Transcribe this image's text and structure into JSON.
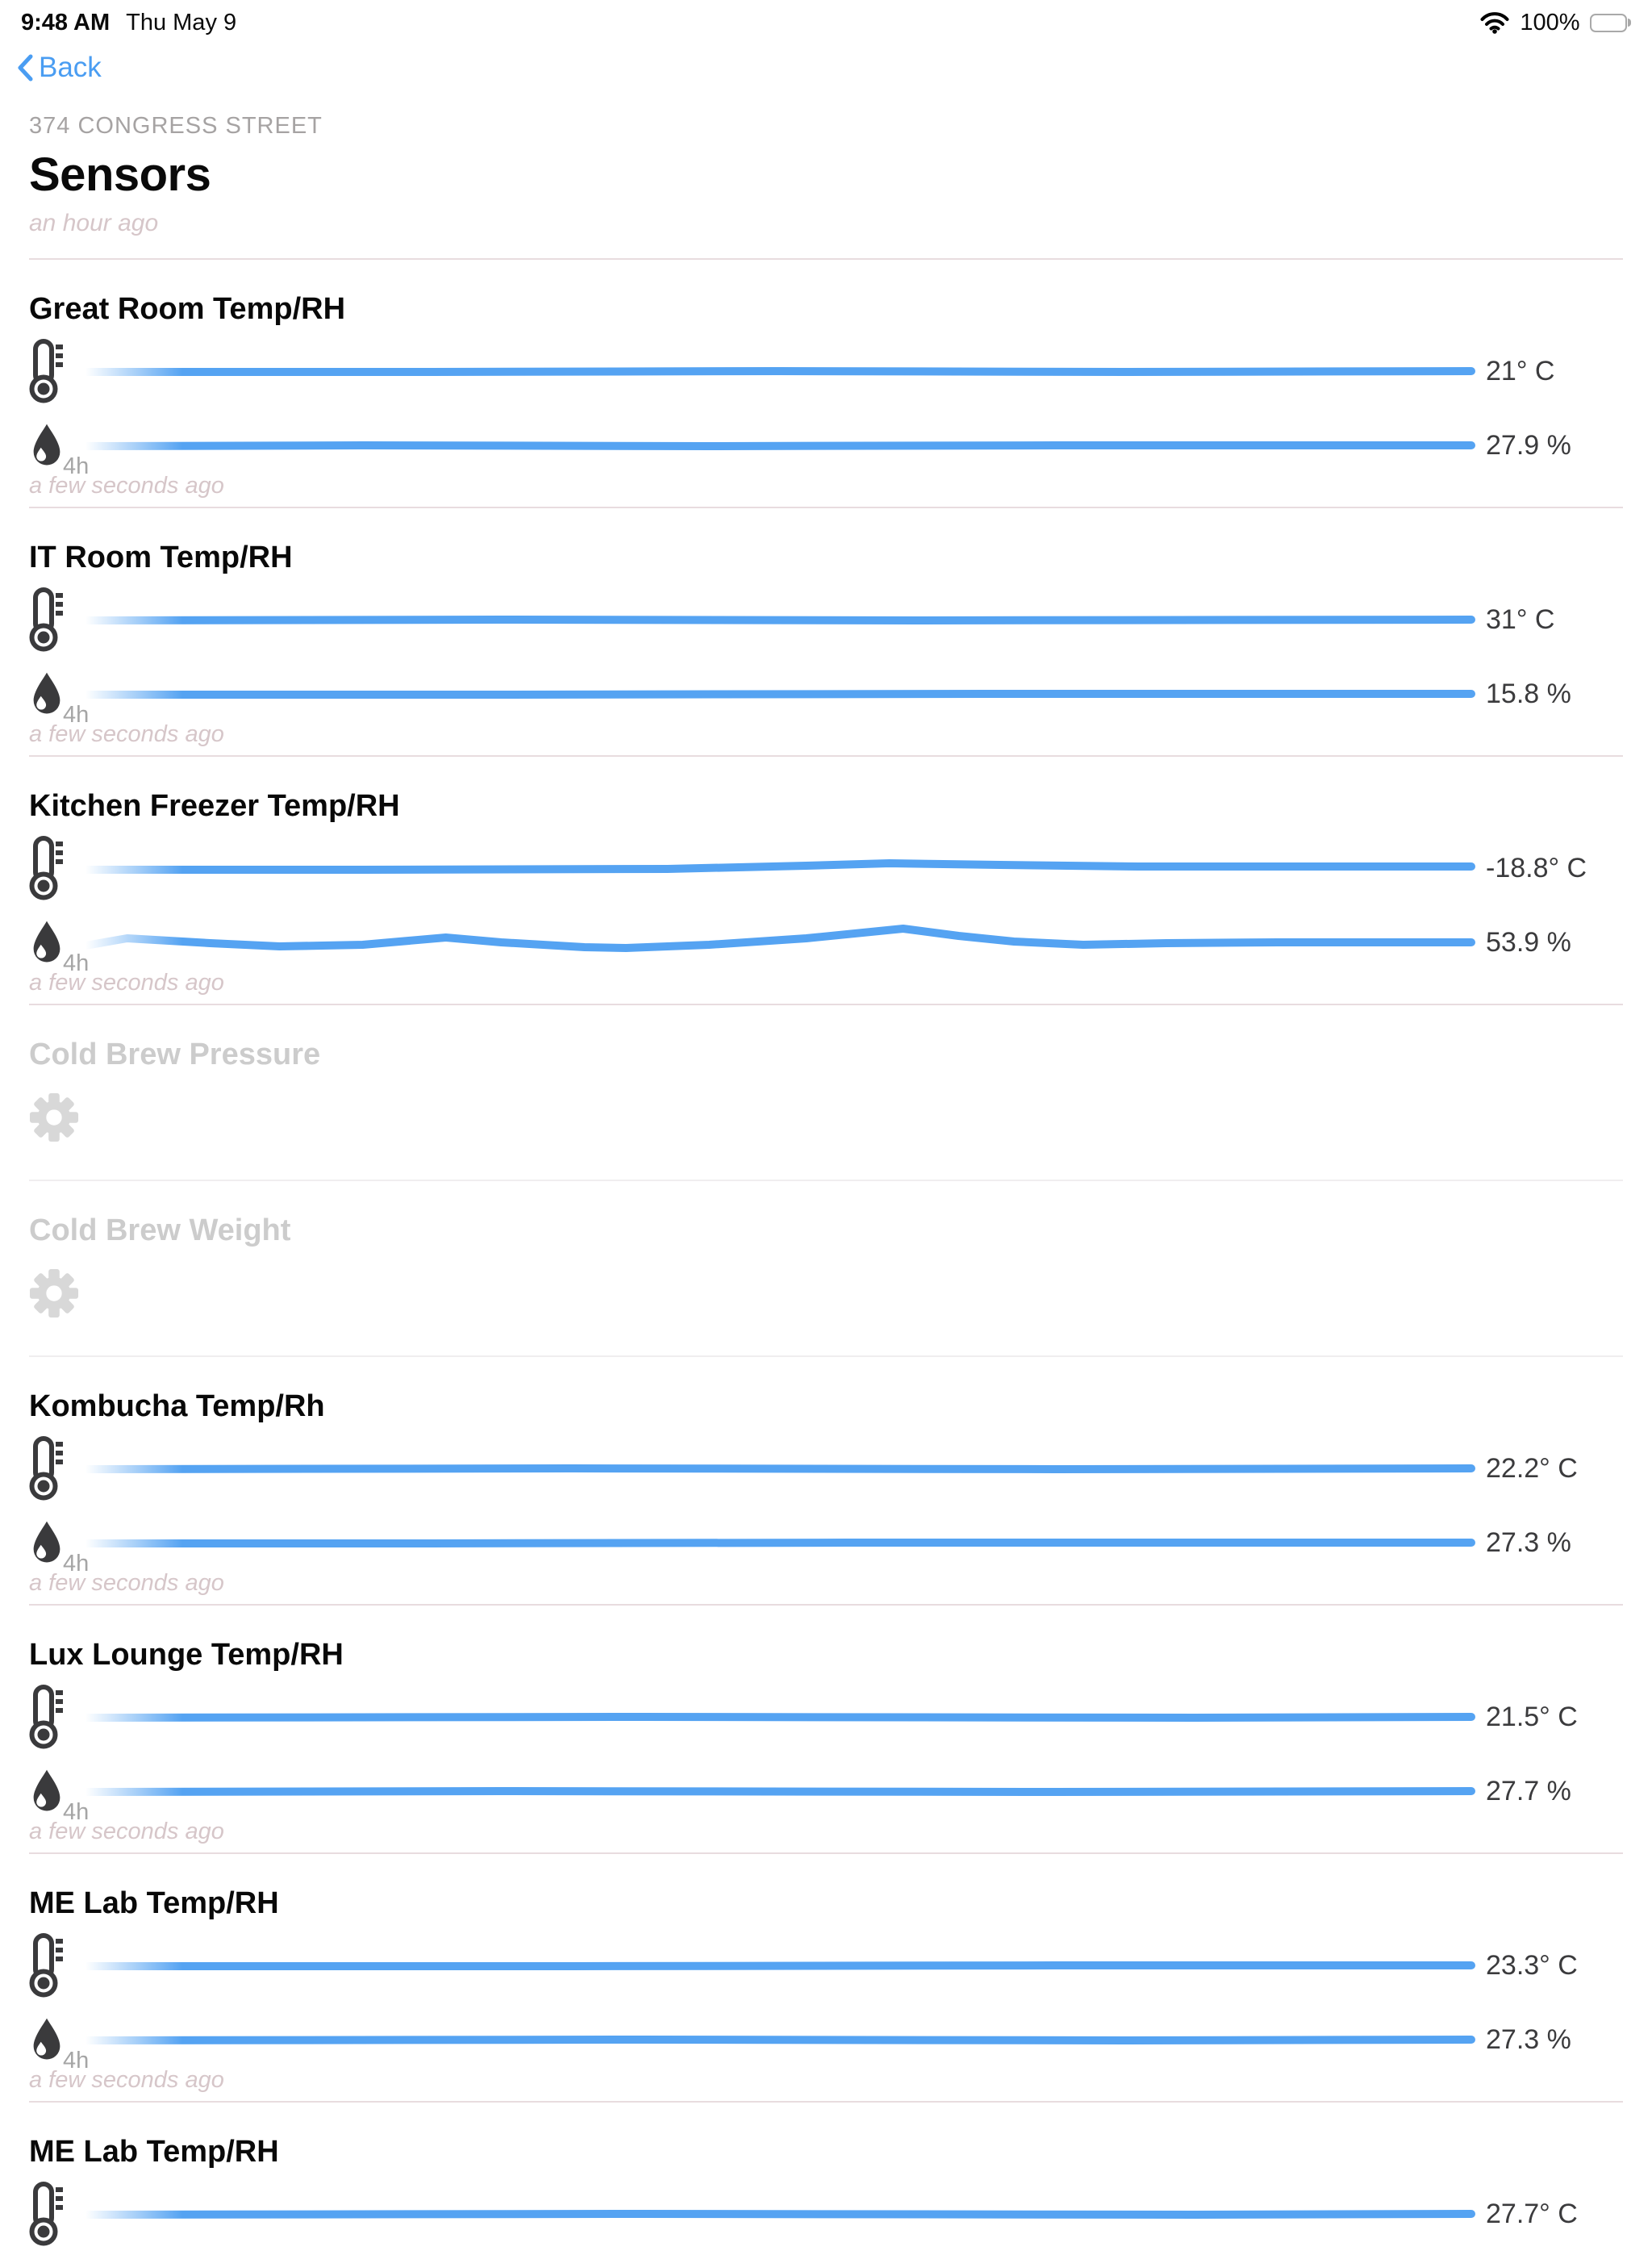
{
  "status_bar": {
    "time": "9:48 AM",
    "date": "Thu May 9",
    "battery_percent": "100%",
    "battery_level": 1.0
  },
  "nav": {
    "back_label": "Back"
  },
  "header": {
    "eyebrow": "374 CONGRESS STREET",
    "title": "Sensors",
    "updated": "an hour ago"
  },
  "icons": {
    "wifi": "wifi-icon",
    "battery": "battery-icon",
    "back": "chevron-left-icon",
    "temperature": "thermometer-icon",
    "humidity": "droplet-icon",
    "disabled_sensor": "gear-icon"
  },
  "colors": {
    "accent_blue": "#4a9df2",
    "line_blue": "#55a3f2",
    "icon_dark": "#3a3a3c",
    "muted_italic": "#d6c6c9",
    "divider": "#e8dcdf",
    "gray_label": "#a5a5a5",
    "disabled_gray": "#cccccc",
    "value_text": "#3b3b3d"
  },
  "sections": [
    {
      "title": "Great Room Temp/RH",
      "type": "sensor",
      "range_label": "4h",
      "updated": "a few seconds ago",
      "rows": [
        {
          "kind": "temperature",
          "value": "21° C",
          "trend": [
            [
              0,
              1
            ],
            [
              25,
              1
            ],
            [
              50,
              0
            ],
            [
              75,
              1
            ],
            [
              100,
              0
            ]
          ]
        },
        {
          "kind": "humidity",
          "value": "27.9 %",
          "trend": [
            [
              0,
              1
            ],
            [
              20,
              0
            ],
            [
              45,
              1
            ],
            [
              70,
              0
            ],
            [
              100,
              0
            ]
          ]
        }
      ]
    },
    {
      "title": "IT Room Temp/RH",
      "type": "sensor",
      "range_label": "4h",
      "updated": "a few seconds ago",
      "rows": [
        {
          "kind": "temperature",
          "value": "31° C",
          "trend": [
            [
              0,
              1
            ],
            [
              30,
              0
            ],
            [
              60,
              1
            ],
            [
              100,
              0
            ]
          ]
        },
        {
          "kind": "humidity",
          "value": "15.8 %",
          "trend": [
            [
              0,
              1
            ],
            [
              30,
              1
            ],
            [
              65,
              0
            ],
            [
              100,
              0
            ]
          ]
        }
      ]
    },
    {
      "title": "Kitchen Freezer Temp/RH",
      "type": "sensor",
      "range_label": "4h",
      "updated": "a few seconds ago",
      "rows": [
        {
          "kind": "temperature",
          "value": "-18.8° C",
          "trend": [
            [
              0,
              2
            ],
            [
              20,
              2
            ],
            [
              42,
              1
            ],
            [
              52,
              -3
            ],
            [
              58,
              -6
            ],
            [
              66,
              -4
            ],
            [
              76,
              -2
            ],
            [
              100,
              -2
            ]
          ]
        },
        {
          "kind": "humidity",
          "value": "53.9 %",
          "trend": [
            [
              0,
              4
            ],
            [
              3,
              -5
            ],
            [
              9,
              1
            ],
            [
              14,
              5
            ],
            [
              20,
              3
            ],
            [
              26,
              -6
            ],
            [
              30,
              0
            ],
            [
              36,
              6
            ],
            [
              39,
              7
            ],
            [
              45,
              3
            ],
            [
              52,
              -5
            ],
            [
              59,
              -17
            ],
            [
              63,
              -8
            ],
            [
              67,
              -1
            ],
            [
              72,
              3
            ],
            [
              78,
              1
            ],
            [
              86,
              0
            ],
            [
              100,
              0
            ]
          ]
        }
      ]
    },
    {
      "title": "Cold Brew Pressure",
      "type": "disabled"
    },
    {
      "title": "Cold Brew Weight",
      "type": "disabled"
    },
    {
      "title": "Kombucha Temp/Rh",
      "type": "sensor",
      "range_label": "4h",
      "updated": "a few seconds ago",
      "rows": [
        {
          "kind": "temperature",
          "value": "22.2° C",
          "trend": [
            [
              0,
              1
            ],
            [
              35,
              0
            ],
            [
              70,
              1
            ],
            [
              100,
              0
            ]
          ]
        },
        {
          "kind": "humidity",
          "value": "27.3 %",
          "trend": [
            [
              0,
              1
            ],
            [
              25,
              1
            ],
            [
              55,
              0
            ],
            [
              100,
              0
            ]
          ]
        }
      ]
    },
    {
      "title": "Lux Lounge Temp/RH",
      "type": "sensor",
      "range_label": "4h",
      "updated": "a few seconds ago",
      "rows": [
        {
          "kind": "temperature",
          "value": "21.5° C",
          "trend": [
            [
              0,
              1
            ],
            [
              40,
              0
            ],
            [
              80,
              1
            ],
            [
              100,
              0
            ]
          ]
        },
        {
          "kind": "humidity",
          "value": "27.7 %",
          "trend": [
            [
              0,
              1
            ],
            [
              30,
              0
            ],
            [
              70,
              1
            ],
            [
              100,
              0
            ]
          ]
        }
      ]
    },
    {
      "title": "ME Lab Temp/RH",
      "type": "sensor",
      "range_label": "4h",
      "updated": "a few seconds ago",
      "rows": [
        {
          "kind": "temperature",
          "value": "23.3° C",
          "trend": [
            [
              0,
              1
            ],
            [
              35,
              1
            ],
            [
              70,
              0
            ],
            [
              100,
              0
            ]
          ]
        },
        {
          "kind": "humidity",
          "value": "27.3 %",
          "trend": [
            [
              0,
              1
            ],
            [
              40,
              0
            ],
            [
              75,
              1
            ],
            [
              100,
              0
            ]
          ]
        }
      ]
    },
    {
      "title": "ME Lab Temp/RH",
      "type": "sensor-partial",
      "rows": [
        {
          "kind": "temperature",
          "value": "27.7° C",
          "trend": [
            [
              0,
              1
            ],
            [
              40,
              0
            ],
            [
              80,
              1
            ],
            [
              100,
              0
            ]
          ]
        }
      ]
    }
  ]
}
